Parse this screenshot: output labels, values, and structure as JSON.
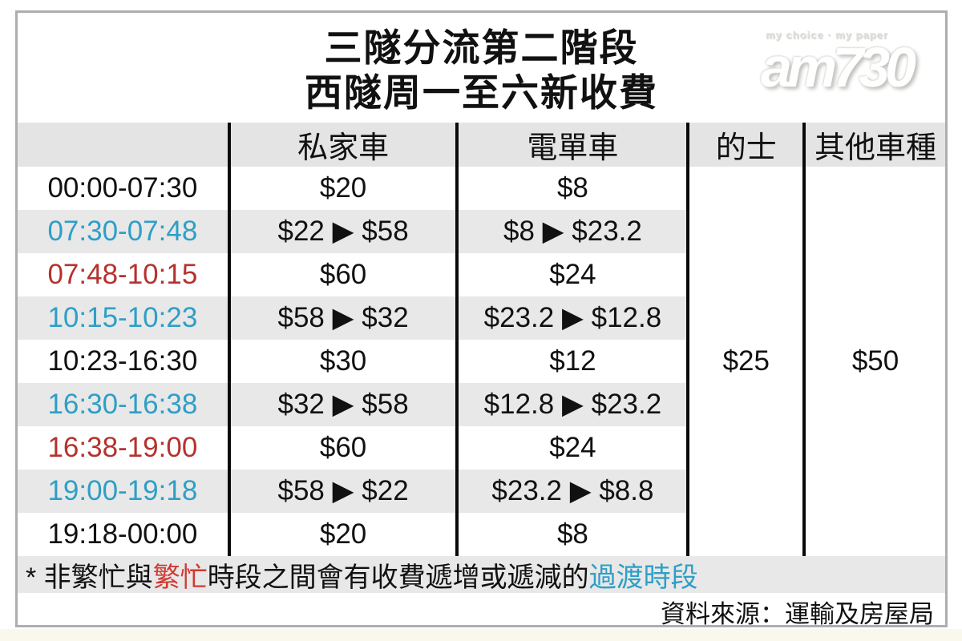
{
  "title": {
    "line1": "三隧分流第二階段",
    "line2": "西隧周一至六新收費"
  },
  "logo": {
    "tagline": "my choice · my paper",
    "name": "am730"
  },
  "table": {
    "headers": [
      "",
      "私家車",
      "電單車",
      "的士",
      "其他車種"
    ],
    "rows": [
      {
        "time": "00:00-07:30",
        "time_color": "black",
        "private_car": "$20",
        "motorcycle": "$8",
        "shaded": false
      },
      {
        "time": "07:30-07:48",
        "time_color": "blue",
        "private_car": "$22 ▶ $58",
        "motorcycle": "$8 ▶ $23.2",
        "shaded": true
      },
      {
        "time": "07:48-10:15",
        "time_color": "red",
        "private_car": "$60",
        "motorcycle": "$24",
        "shaded": false
      },
      {
        "time": "10:15-10:23",
        "time_color": "blue",
        "private_car": "$58 ▶ $32",
        "motorcycle": "$23.2 ▶ $12.8",
        "shaded": true
      },
      {
        "time": "10:23-16:30",
        "time_color": "black",
        "private_car": "$30",
        "motorcycle": "$12",
        "shaded": false
      },
      {
        "time": "16:30-16:38",
        "time_color": "blue",
        "private_car": "$32 ▶ $58",
        "motorcycle": "$12.8 ▶ $23.2",
        "shaded": true
      },
      {
        "time": "16:38-19:00",
        "time_color": "red",
        "private_car": "$60",
        "motorcycle": "$24",
        "shaded": false
      },
      {
        "time": "19:00-19:18",
        "time_color": "blue",
        "private_car": "$58 ▶ $22",
        "motorcycle": "$23.2 ▶ $8.8",
        "shaded": true
      },
      {
        "time": "19:18-00:00",
        "time_color": "black",
        "private_car": "$20",
        "motorcycle": "$8",
        "shaded": false
      }
    ],
    "taxi_fare": "$25",
    "other_vehicles_fare": "$50"
  },
  "footnote": {
    "parts": [
      {
        "text": "* 非繁忙與",
        "color": "black"
      },
      {
        "text": "繁忙",
        "color": "red"
      },
      {
        "text": "時段之間會有收費遞增或遞減的",
        "color": "black"
      },
      {
        "text": "過渡時段",
        "color": "blue"
      }
    ]
  },
  "source": "資料來源：運輸及房屋局",
  "colors": {
    "red": "#b5322e",
    "red_bright": "#cf3a31",
    "blue": "#2e9fc6",
    "row_shade": "#e8e8e8",
    "header_shade": "#e4e4e4"
  }
}
